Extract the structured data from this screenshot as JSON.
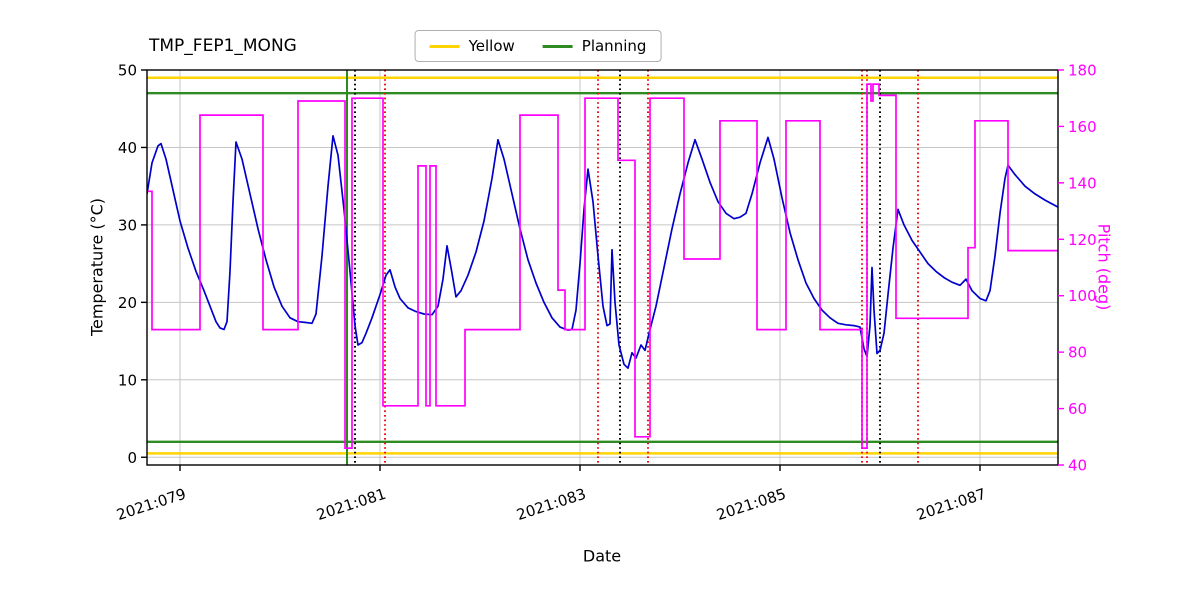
{
  "legend": {
    "items": [
      {
        "label": "Yellow",
        "color": "#ffd400"
      },
      {
        "label": "Planning",
        "color": "#2e8b22"
      }
    ]
  },
  "chart_data": {
    "type": "line",
    "title": "TMP_FEP1_MONG",
    "xlabel": "Date",
    "ylabel_left": "Temperature (°C)",
    "ylabel_right": "Pitch (deg)",
    "x_range": [
      78.67,
      87.78
    ],
    "y_left_range": [
      -1,
      50
    ],
    "y_right_range": [
      40,
      180
    ],
    "x_ticks": [
      {
        "value": 79,
        "label": "2021:079"
      },
      {
        "value": 81,
        "label": "2021:081"
      },
      {
        "value": 83,
        "label": "2021:083"
      },
      {
        "value": 85,
        "label": "2021:085"
      },
      {
        "value": 87,
        "label": "2021:087"
      }
    ],
    "y_left_ticks": [
      0,
      10,
      20,
      30,
      40,
      50
    ],
    "y_right_ticks": [
      40,
      60,
      80,
      100,
      120,
      140,
      160,
      180
    ],
    "grid": true,
    "legend_position": "top-center",
    "colors": {
      "grid": "#c6c6c6",
      "axis": "#000000",
      "temperature": "#0000cd",
      "pitch": "#ff00ff",
      "yellow_limit": "#ffd400",
      "planning_limit": "#2e8b22",
      "red_event": "#ee1111"
    },
    "h_lines": [
      {
        "name": "yellow-high",
        "y": 49,
        "color": "#ffd400",
        "style": "solid"
      },
      {
        "name": "yellow-low",
        "y": 0.5,
        "color": "#ffd400",
        "style": "solid"
      },
      {
        "name": "planning-high",
        "y": 47,
        "color": "#2e8b22",
        "style": "solid"
      },
      {
        "name": "planning-low",
        "y": 2,
        "color": "#2e8b22",
        "style": "solid"
      }
    ],
    "v_lines": [
      {
        "x": 80.67,
        "color": "#2e8b22",
        "style": "solid"
      },
      {
        "x": 80.75,
        "color": "#000000",
        "style": "dotted"
      },
      {
        "x": 81.05,
        "color": "#ee1111",
        "style": "dotted"
      },
      {
        "x": 83.18,
        "color": "#ee1111",
        "style": "dotted"
      },
      {
        "x": 83.4,
        "color": "#000000",
        "style": "dotted"
      },
      {
        "x": 83.68,
        "color": "#ee1111",
        "style": "dotted"
      },
      {
        "x": 85.82,
        "color": "#ee1111",
        "style": "dotted"
      },
      {
        "x": 85.87,
        "color": "#ee1111",
        "style": "dotted"
      },
      {
        "x": 86.0,
        "color": "#000000",
        "style": "dotted"
      },
      {
        "x": 86.38,
        "color": "#ee1111",
        "style": "dotted"
      }
    ],
    "series": [
      {
        "name": "TMP_FEP1_MONG temperature",
        "axis": "left",
        "color": "#0000cd",
        "style": "line",
        "points": [
          [
            78.67,
            34
          ],
          [
            78.72,
            38
          ],
          [
            78.78,
            40.2
          ],
          [
            78.81,
            40.5
          ],
          [
            78.86,
            38.5
          ],
          [
            78.93,
            34.5
          ],
          [
            79.0,
            30.5
          ],
          [
            79.08,
            27
          ],
          [
            79.16,
            24
          ],
          [
            79.24,
            21.5
          ],
          [
            79.3,
            19.5
          ],
          [
            79.36,
            17.5
          ],
          [
            79.4,
            16.7
          ],
          [
            79.44,
            16.5
          ],
          [
            79.47,
            17.5
          ],
          [
            79.5,
            24
          ],
          [
            79.53,
            33
          ],
          [
            79.56,
            40.7
          ],
          [
            79.62,
            38.5
          ],
          [
            79.7,
            34
          ],
          [
            79.78,
            29.5
          ],
          [
            79.86,
            25.5
          ],
          [
            79.94,
            22
          ],
          [
            80.02,
            19.5
          ],
          [
            80.1,
            18
          ],
          [
            80.18,
            17.5
          ],
          [
            80.26,
            17.4
          ],
          [
            80.32,
            17.3
          ],
          [
            80.36,
            18.5
          ],
          [
            80.42,
            26
          ],
          [
            80.48,
            35
          ],
          [
            80.53,
            41.5
          ],
          [
            80.58,
            39
          ],
          [
            80.64,
            32
          ],
          [
            80.7,
            24
          ],
          [
            80.75,
            17
          ],
          [
            80.78,
            14.5
          ],
          [
            80.82,
            14.8
          ],
          [
            80.86,
            16
          ],
          [
            80.92,
            18
          ],
          [
            81.0,
            21
          ],
          [
            81.06,
            23.5
          ],
          [
            81.1,
            24.2
          ],
          [
            81.15,
            22
          ],
          [
            81.2,
            20.5
          ],
          [
            81.28,
            19.3
          ],
          [
            81.36,
            18.8
          ],
          [
            81.44,
            18.5
          ],
          [
            81.52,
            18.4
          ],
          [
            81.58,
            19.5
          ],
          [
            81.63,
            23
          ],
          [
            81.67,
            27.3
          ],
          [
            81.71,
            24.5
          ],
          [
            81.76,
            20.7
          ],
          [
            81.81,
            21.5
          ],
          [
            81.88,
            23.5
          ],
          [
            81.96,
            26.5
          ],
          [
            82.04,
            30.5
          ],
          [
            82.12,
            36
          ],
          [
            82.18,
            41
          ],
          [
            82.24,
            38.5
          ],
          [
            82.32,
            34
          ],
          [
            82.4,
            29.5
          ],
          [
            82.48,
            25.5
          ],
          [
            82.56,
            22.5
          ],
          [
            82.64,
            20
          ],
          [
            82.72,
            18
          ],
          [
            82.8,
            16.8
          ],
          [
            82.88,
            16.4
          ],
          [
            82.92,
            16.5
          ],
          [
            82.96,
            19
          ],
          [
            83.0,
            25
          ],
          [
            83.04,
            32
          ],
          [
            83.08,
            37.2
          ],
          [
            83.13,
            33
          ],
          [
            83.18,
            26
          ],
          [
            83.23,
            19.5
          ],
          [
            83.27,
            17
          ],
          [
            83.3,
            17.2
          ],
          [
            83.32,
            26.8
          ],
          [
            83.35,
            20
          ],
          [
            83.39,
            14.5
          ],
          [
            83.44,
            12
          ],
          [
            83.48,
            11.5
          ],
          [
            83.52,
            13.5
          ],
          [
            83.56,
            12.8
          ],
          [
            83.61,
            14.5
          ],
          [
            83.65,
            13.8
          ],
          [
            83.7,
            16.5
          ],
          [
            83.76,
            19.5
          ],
          [
            83.84,
            24.5
          ],
          [
            83.92,
            29.5
          ],
          [
            84.0,
            34
          ],
          [
            84.08,
            38
          ],
          [
            84.15,
            41
          ],
          [
            84.22,
            38.5
          ],
          [
            84.3,
            35.5
          ],
          [
            84.38,
            33
          ],
          [
            84.46,
            31.5
          ],
          [
            84.54,
            30.8
          ],
          [
            84.6,
            31
          ],
          [
            84.66,
            31.5
          ],
          [
            84.72,
            34
          ],
          [
            84.8,
            38
          ],
          [
            84.88,
            41.3
          ],
          [
            84.94,
            38.5
          ],
          [
            85.02,
            33.5
          ],
          [
            85.1,
            29
          ],
          [
            85.18,
            25.5
          ],
          [
            85.26,
            22.5
          ],
          [
            85.34,
            20.5
          ],
          [
            85.42,
            19
          ],
          [
            85.5,
            18
          ],
          [
            85.58,
            17.3
          ],
          [
            85.66,
            17.1
          ],
          [
            85.74,
            17
          ],
          [
            85.8,
            16.8
          ],
          [
            85.84,
            14
          ],
          [
            85.87,
            13
          ],
          [
            85.9,
            17
          ],
          [
            85.92,
            24.5
          ],
          [
            85.94,
            19
          ],
          [
            85.97,
            13.4
          ],
          [
            86.0,
            13.8
          ],
          [
            86.04,
            16
          ],
          [
            86.08,
            21
          ],
          [
            86.13,
            27
          ],
          [
            86.18,
            32
          ],
          [
            86.24,
            30
          ],
          [
            86.32,
            28
          ],
          [
            86.4,
            26.5
          ],
          [
            86.48,
            25
          ],
          [
            86.56,
            24
          ],
          [
            86.64,
            23.2
          ],
          [
            86.72,
            22.6
          ],
          [
            86.8,
            22.2
          ],
          [
            86.86,
            23
          ],
          [
            86.92,
            21.5
          ],
          [
            87.0,
            20.5
          ],
          [
            87.06,
            20.2
          ],
          [
            87.1,
            21.5
          ],
          [
            87.15,
            26
          ],
          [
            87.2,
            31.5
          ],
          [
            87.25,
            36
          ],
          [
            87.28,
            37.7
          ],
          [
            87.35,
            36.5
          ],
          [
            87.45,
            35
          ],
          [
            87.55,
            34
          ],
          [
            87.65,
            33.2
          ],
          [
            87.78,
            32.3
          ]
        ]
      },
      {
        "name": "Pitch",
        "axis": "right",
        "color": "#ff00ff",
        "style": "step",
        "points": [
          [
            78.67,
            137
          ],
          [
            78.72,
            88
          ],
          [
            79.2,
            164
          ],
          [
            79.83,
            88
          ],
          [
            80.18,
            169
          ],
          [
            80.65,
            46
          ],
          [
            80.72,
            170
          ],
          [
            81.03,
            61
          ],
          [
            81.38,
            146
          ],
          [
            81.46,
            61
          ],
          [
            81.5,
            146
          ],
          [
            81.56,
            61
          ],
          [
            81.85,
            88
          ],
          [
            82.4,
            164
          ],
          [
            82.78,
            102
          ],
          [
            82.85,
            88
          ],
          [
            83.05,
            170
          ],
          [
            83.38,
            148
          ],
          [
            83.55,
            50
          ],
          [
            83.7,
            170
          ],
          [
            84.04,
            113
          ],
          [
            84.4,
            162
          ],
          [
            84.77,
            88
          ],
          [
            85.06,
            162
          ],
          [
            85.4,
            88
          ],
          [
            85.82,
            46
          ],
          [
            85.87,
            175
          ],
          [
            85.91,
            169
          ],
          [
            85.93,
            175
          ],
          [
            85.99,
            171
          ],
          [
            86.16,
            92
          ],
          [
            86.88,
            117
          ],
          [
            86.95,
            162
          ],
          [
            87.28,
            116
          ]
        ]
      }
    ]
  }
}
